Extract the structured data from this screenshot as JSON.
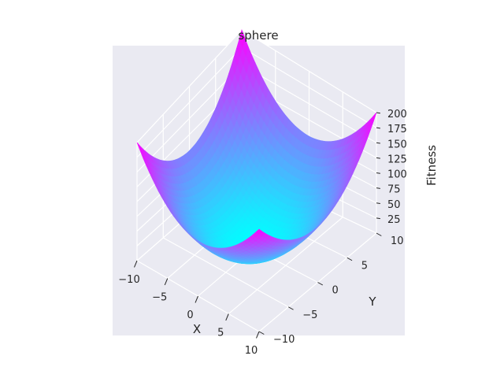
{
  "chart_data": {
    "type": "surface3d",
    "title": "sphere",
    "function": "x^2 + y^2",
    "xlabel": "X",
    "ylabel": "Y",
    "zlabel": "Fitness",
    "xlim": [
      -10,
      10
    ],
    "ylim": [
      -10,
      10
    ],
    "zlim": [
      0,
      200
    ],
    "x_ticks": [
      "−10",
      "−5",
      "0",
      "5",
      "10"
    ],
    "y_ticks": [
      "−10",
      "−5",
      "0",
      "5",
      "10"
    ],
    "z_ticks": [
      "25",
      "50",
      "75",
      "100",
      "125",
      "150",
      "175",
      "200"
    ],
    "colormap": "cool",
    "colormap_colors": [
      "#00ffff",
      "#ff00ff"
    ],
    "grid": true,
    "pane_color": "#eaeaf2"
  }
}
